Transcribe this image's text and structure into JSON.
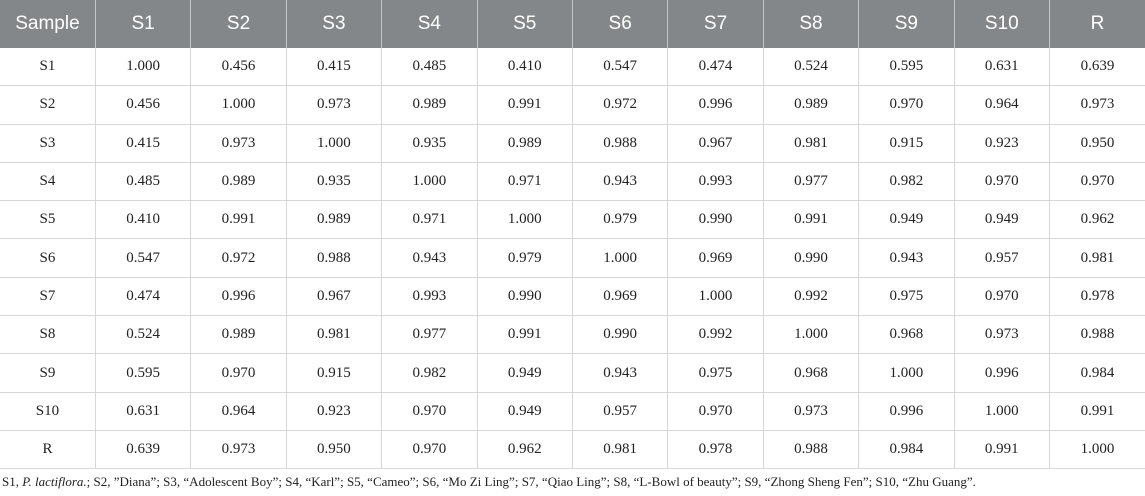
{
  "table": {
    "headers": [
      "Sample",
      "S1",
      "S2",
      "S3",
      "S4",
      "S5",
      "S6",
      "S7",
      "S8",
      "S9",
      "S10",
      "R"
    ],
    "rows": [
      [
        "S1",
        "1.000",
        "0.456",
        "0.415",
        "0.485",
        "0.410",
        "0.547",
        "0.474",
        "0.524",
        "0.595",
        "0.631",
        "0.639"
      ],
      [
        "S2",
        "0.456",
        "1.000",
        "0.973",
        "0.989",
        "0.991",
        "0.972",
        "0.996",
        "0.989",
        "0.970",
        "0.964",
        "0.973"
      ],
      [
        "S3",
        "0.415",
        "0.973",
        "1.000",
        "0.935",
        "0.989",
        "0.988",
        "0.967",
        "0.981",
        "0.915",
        "0.923",
        "0.950"
      ],
      [
        "S4",
        "0.485",
        "0.989",
        "0.935",
        "1.000",
        "0.971",
        "0.943",
        "0.993",
        "0.977",
        "0.982",
        "0.970",
        "0.970"
      ],
      [
        "S5",
        "0.410",
        "0.991",
        "0.989",
        "0.971",
        "1.000",
        "0.979",
        "0.990",
        "0.991",
        "0.949",
        "0.949",
        "0.962"
      ],
      [
        "S6",
        "0.547",
        "0.972",
        "0.988",
        "0.943",
        "0.979",
        "1.000",
        "0.969",
        "0.990",
        "0.943",
        "0.957",
        "0.981"
      ],
      [
        "S7",
        "0.474",
        "0.996",
        "0.967",
        "0.993",
        "0.990",
        "0.969",
        "1.000",
        "0.992",
        "0.975",
        "0.970",
        "0.978"
      ],
      [
        "S8",
        "0.524",
        "0.989",
        "0.981",
        "0.977",
        "0.991",
        "0.990",
        "0.992",
        "1.000",
        "0.968",
        "0.973",
        "0.988"
      ],
      [
        "S9",
        "0.595",
        "0.970",
        "0.915",
        "0.982",
        "0.949",
        "0.943",
        "0.975",
        "0.968",
        "1.000",
        "0.996",
        "0.984"
      ],
      [
        "S10",
        "0.631",
        "0.964",
        "0.923",
        "0.970",
        "0.949",
        "0.957",
        "0.970",
        "0.973",
        "0.996",
        "1.000",
        "0.991"
      ],
      [
        "R",
        "0.639",
        "0.973",
        "0.950",
        "0.970",
        "0.962",
        "0.981",
        "0.978",
        "0.988",
        "0.984",
        "0.991",
        "1.000"
      ]
    ]
  },
  "footnote": {
    "pre": "S1, ",
    "species": "P. lactiflora.",
    "post": "; S2, ”Diana”; S3, “Adolescent Boy”; S4, “Karl”; S5, “Cameo”; S6, “Mo Zi Ling”; S7, “Qiao Ling”; S8, “L-Bowl of beauty”; S9, “Zhong Sheng Fen”; S10, “Zhu Guang”."
  },
  "colors": {
    "header_bg": "#848789",
    "header_text": "#ffffff",
    "grid_line": "#d6d6d6"
  }
}
